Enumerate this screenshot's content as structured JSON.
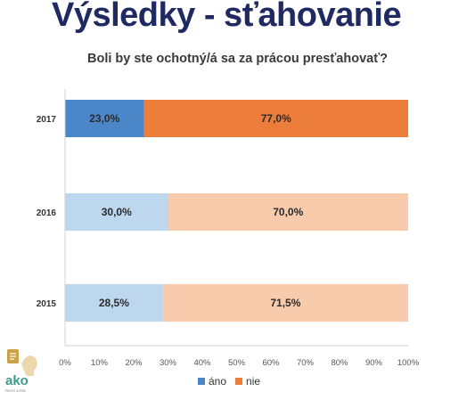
{
  "slide": {
    "title": "Výsledky - sťahovanie"
  },
  "chart_data": {
    "type": "bar",
    "orientation": "horizontal",
    "stacked": "percent",
    "title": "Boli by ste ochotný/á sa za prácou presťahovať?",
    "categories": [
      "2017",
      "2016",
      "2015"
    ],
    "series": [
      {
        "name": "áno",
        "values": [
          23.0,
          30.0,
          28.5
        ],
        "labels": [
          "23,0%",
          "30,0%",
          "28,5%"
        ]
      },
      {
        "name": "nie",
        "values": [
          77.0,
          70.0,
          71.5
        ],
        "labels": [
          "77,0%",
          "70,0%",
          "71,5%"
        ]
      }
    ],
    "colors": {
      "ano_highlight": "#4a86c8",
      "nie_highlight": "#ed7d3b",
      "ano_muted": "#bdd7ee",
      "nie_muted": "#f8cbad"
    },
    "highlighted_category": "2017",
    "xlim": [
      0,
      100
    ],
    "x_ticks": [
      "0%",
      "10%",
      "20%",
      "30%",
      "40%",
      "50%",
      "60%",
      "70%",
      "80%",
      "90%",
      "100%"
    ],
    "grid": false,
    "legend_position": "bottom"
  },
  "logo": {
    "text": "ako",
    "tagline": "PROFIT & RISK"
  }
}
